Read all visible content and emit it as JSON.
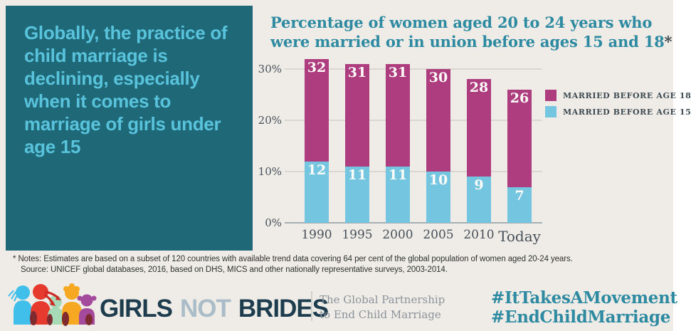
{
  "colors": {
    "background": "#efece7",
    "panel": "#1e6878",
    "headline_text": "#5ac3dc",
    "title_text": "#2d8aa1",
    "bar_married_before_18": "#ae3d80",
    "bar_married_before_15": "#74c6e0",
    "bar_value_label": "#fdfcf8",
    "axis_text": "#475059",
    "legend_text": "#3e4a52",
    "hashtag_text": "#2d8aa1",
    "logo_dark": "#1d3d4f",
    "logo_not_gray": "#a9bcc7"
  },
  "headline": {
    "text": "Globally, the practice of child marriage is declining, especially when it comes to marriage of girls under age 15"
  },
  "chart": {
    "title": "Percentage of women aged 20 to 24 years who were married or in union before ages 15 and 18",
    "footnote_marker": "*"
  },
  "chart_data": {
    "type": "bar",
    "stacked": true,
    "title": "Percentage of women aged 20 to 24 years who were married or in union before ages 15 and 18*",
    "categories": [
      "1990",
      "1995",
      "2000",
      "2005",
      "2010",
      "Today"
    ],
    "series": [
      {
        "name": "MARRIED BEFORE AGE 18",
        "color": "#ae3d80",
        "values": [
          32,
          31,
          31,
          30,
          28,
          26
        ]
      },
      {
        "name": "MARRIED BEFORE AGE 15",
        "color": "#74c6e0",
        "values": [
          12,
          11,
          11,
          10,
          9,
          7
        ]
      }
    ],
    "yticks": [
      {
        "label": "0%",
        "value": 0
      },
      {
        "label": "10%",
        "value": 10
      },
      {
        "label": "20%",
        "value": 20
      },
      {
        "label": "30%",
        "value": 30
      }
    ],
    "ylim": [
      0,
      32.5
    ],
    "grid": true,
    "legend_position": "right",
    "value_labels": "shown in white at top of each segment; the before-age-18 value is the total bar height"
  },
  "notes": {
    "line1": "* Notes: Estimates are based on a subset of 120 countries with available trend data covering 64 per cent of the global population of women aged 20-24 years.",
    "line2": "Source: UNICEF global databases, 2016, based on DHS, MICS and other nationally representative surveys, 2003-2014."
  },
  "footer": {
    "logo_girls": "GIRLS",
    "logo_not": "NOT",
    "logo_brides": "BRIDES",
    "tagline_line1": "The Global Partnership",
    "tagline_line2": "to End Child Marriage",
    "hashtag1": "#ItTakesAMovement",
    "hashtag2": "#EndChildMarriage"
  }
}
